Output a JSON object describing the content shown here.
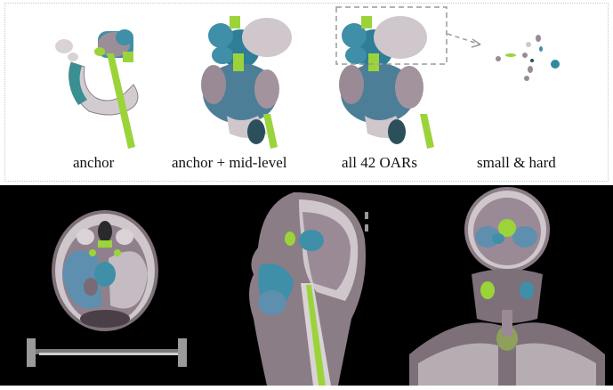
{
  "captions": [
    "anchor",
    "anchor + mid-level",
    "all 42 OARs",
    "small & hard"
  ],
  "colors": {
    "bone": "#d8d2d4",
    "soft_tissue": "#8a7d86",
    "teal_organ": "#3f8fa8",
    "lime_organ": "#9bd43a",
    "mauve_organ": "#9e8a96",
    "background_dark": "#000000"
  },
  "views": [
    "axial-ct-slice",
    "sagittal-ct-slice",
    "coronal-ct-slice"
  ]
}
